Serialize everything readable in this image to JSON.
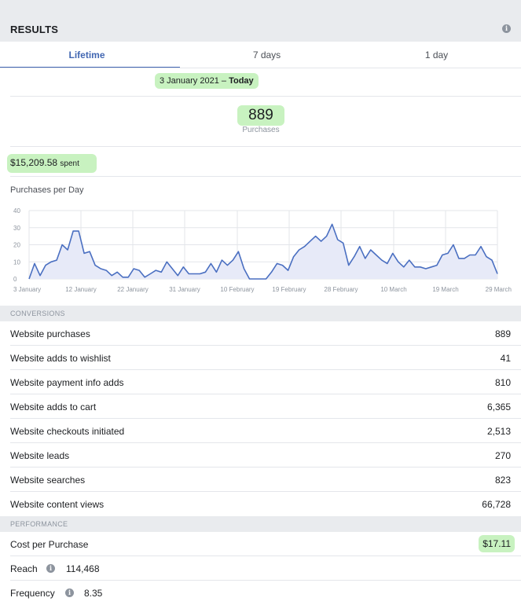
{
  "header": {
    "title": "RESULTS",
    "info_icon": "info-icon"
  },
  "tabs": [
    {
      "label": "Lifetime",
      "active": true
    },
    {
      "label": "7 days",
      "active": false
    },
    {
      "label": "1 day",
      "active": false
    }
  ],
  "date_range": {
    "start": "3 January 2021 –",
    "end": "Today"
  },
  "summary": {
    "count": "889",
    "count_label": "Purchases",
    "spent_value": "$15,209.58",
    "spent_unit": "spent"
  },
  "chart_title": "Purchases per Day",
  "chart_data": {
    "type": "area",
    "title": "Purchases per Day",
    "ylim": [
      0,
      40
    ],
    "y_ticks": [
      "0",
      "10",
      "20",
      "30",
      "40"
    ],
    "x_ticks": [
      "3 January",
      "12 January",
      "22 January",
      "31 January",
      "10 February",
      "19 February",
      "28 February",
      "10 March",
      "19 March",
      "29 March"
    ],
    "series": [
      {
        "values": [
          0,
          9,
          2,
          8,
          10,
          11,
          20,
          17,
          28,
          28,
          15,
          16,
          8,
          6,
          5,
          2,
          4,
          1,
          1,
          6,
          5,
          1,
          3,
          5,
          4,
          10,
          6,
          2,
          7,
          3,
          3,
          3,
          4,
          9,
          4,
          11,
          8,
          11,
          16,
          6,
          0,
          0,
          0,
          0,
          4,
          9,
          8,
          5,
          13,
          17,
          19,
          22,
          25,
          22,
          25,
          32,
          23,
          21,
          8,
          13,
          19,
          12,
          17,
          14,
          11,
          9,
          15,
          10,
          7,
          11,
          7,
          7,
          6,
          7,
          8,
          14,
          15,
          20,
          12,
          12,
          14,
          14,
          19,
          13,
          11,
          3
        ]
      }
    ],
    "grid": true,
    "colors": {
      "line": "#4a6fc1",
      "fill": "#e7eaf8"
    }
  },
  "conversions": {
    "heading": "CONVERSIONS",
    "rows": [
      {
        "label": "Website purchases",
        "value": "889"
      },
      {
        "label": "Website adds to wishlist",
        "value": "41"
      },
      {
        "label": "Website payment info adds",
        "value": "810"
      },
      {
        "label": "Website adds to cart",
        "value": "6,365"
      },
      {
        "label": "Website checkouts initiated",
        "value": "2,513"
      },
      {
        "label": "Website leads",
        "value": "270"
      },
      {
        "label": "Website searches",
        "value": "823"
      },
      {
        "label": "Website content views",
        "value": "66,728"
      }
    ]
  },
  "performance": {
    "heading": "PERFORMANCE",
    "cost_label": "Cost per Purchase",
    "cost_value": "$17.11",
    "reach_label": "Reach",
    "reach_value": "114,468",
    "frequency_label": "Frequency",
    "frequency_value": "8.35"
  }
}
